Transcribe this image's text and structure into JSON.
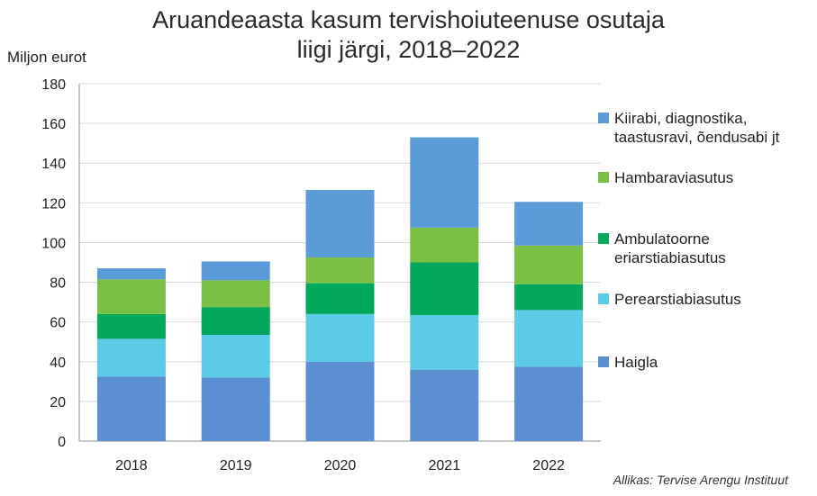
{
  "title": {
    "line1": "Aruandeaasta kasum tervishoiuteenuse osutaja",
    "line2": "liigi järgi, 2018–2022"
  },
  "source": "Allikas: Tervise Arengu Instituut",
  "chart_data": {
    "type": "bar",
    "stacked": true,
    "title": "Aruandeaasta kasum tervishoiuteenuse osutaja liigi järgi, 2018–2022",
    "ylabel": "Miljon eurot",
    "xlabel": "",
    "ylim": [
      0,
      180
    ],
    "yticks": [
      0,
      20,
      40,
      60,
      80,
      100,
      120,
      140,
      160,
      180
    ],
    "grid": true,
    "legend_position": "right",
    "categories": [
      "2018",
      "2019",
      "2020",
      "2021",
      "2022"
    ],
    "series": [
      {
        "name": "Haigla",
        "values": [
          32.5,
          32,
          40,
          36,
          37.5
        ],
        "color": "#5a8fd2"
      },
      {
        "name": "Perearstiabiasutus",
        "values": [
          19,
          21.5,
          24,
          27.5,
          28.5
        ],
        "color": "#5ccbe8"
      },
      {
        "name": "Ambulatoorne eriarstiabiasutus",
        "values": [
          12.5,
          14,
          15.5,
          26.5,
          13
        ],
        "color": "#00a85c"
      },
      {
        "name": "Hambaraviasutus",
        "values": [
          17.5,
          13.5,
          13,
          17.5,
          19.5
        ],
        "color": "#7bbf44"
      },
      {
        "name": "Kiirabi, diagnostika, taastusravi, õendusabi jt",
        "values": [
          5.5,
          9.5,
          34,
          45.5,
          22
        ],
        "color": "#5b9bd8"
      }
    ]
  },
  "legend": [
    {
      "lines": [
        "Kiirabi, diagnostika,",
        "taastusravi, õendusabi jt"
      ],
      "color": "#5b9bd8"
    },
    {
      "lines": [
        "Hambaraviasutus"
      ],
      "color": "#7bbf44"
    },
    {
      "lines": [
        "Ambulatoorne",
        "eriarstiabiasutus"
      ],
      "color": "#00a85c"
    },
    {
      "lines": [
        "Perearstiabiasutus"
      ],
      "color": "#5ccbe8"
    },
    {
      "lines": [
        "Haigla"
      ],
      "color": "#5a8fd2"
    }
  ]
}
